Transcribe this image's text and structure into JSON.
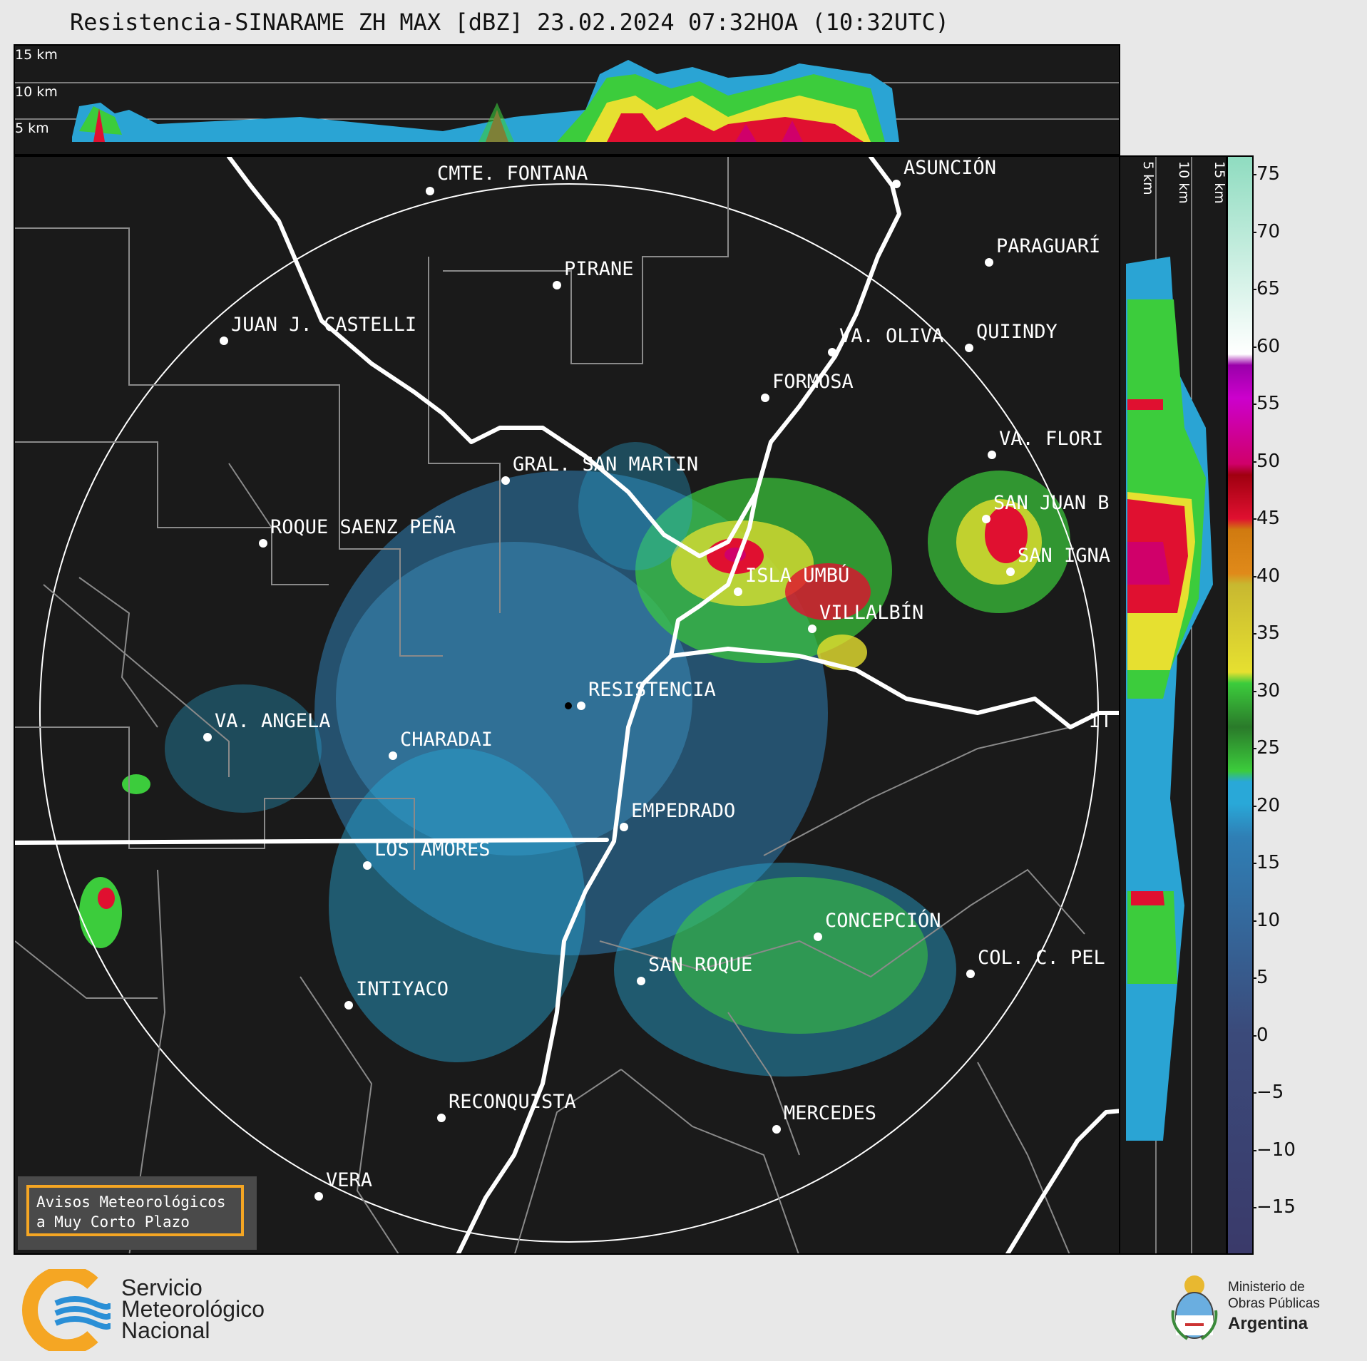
{
  "title": "Resistencia-SINARAME ZH MAX [dBZ] 23.02.2024 07:32HOA (10:32UTC)",
  "height_profile": {
    "top_labels": [
      "15 km",
      "10 km",
      "5 km"
    ],
    "side_labels": [
      "5 km",
      "10 km",
      "15 km"
    ]
  },
  "cities": [
    {
      "name": "CMTE. FONTANA"
    },
    {
      "name": "ASUNCIÓN"
    },
    {
      "name": "PARAGUARÍ"
    },
    {
      "name": "PIRANE"
    },
    {
      "name": "JUAN J. CASTELLI"
    },
    {
      "name": "VA. OLIVA"
    },
    {
      "name": "QUIINDY"
    },
    {
      "name": "FORMOSA"
    },
    {
      "name": "VA. FLORI"
    },
    {
      "name": "GRAL. SAN MARTIN"
    },
    {
      "name": "SAN JUAN B"
    },
    {
      "name": "ROQUE SAENZ PEÑA"
    },
    {
      "name": "SAN IGNA"
    },
    {
      "name": "ISLA UMBÚ"
    },
    {
      "name": "VILLALBÍN"
    },
    {
      "name": "RESISTENCIA"
    },
    {
      "name": "VA. ANGELA"
    },
    {
      "name": "CHARADAI"
    },
    {
      "name": "IT"
    },
    {
      "name": "EMPEDRADO"
    },
    {
      "name": "LOS AMORES"
    },
    {
      "name": "CONCEPCIÓN"
    },
    {
      "name": "COL. C. PEL"
    },
    {
      "name": "SAN ROQUE"
    },
    {
      "name": "INTIYACO"
    },
    {
      "name": "RECONQUISTA"
    },
    {
      "name": "MERCEDES"
    },
    {
      "name": "VERA"
    }
  ],
  "colorbar": {
    "unit": "dBZ",
    "ticks": [
      "75",
      "70",
      "65",
      "60",
      "55",
      "50",
      "45",
      "40",
      "35",
      "30",
      "25",
      "20",
      "15",
      "10",
      "5",
      "0",
      "−5",
      "−10",
      "−15"
    ],
    "colors": {
      "lt0": "#3b4a7a",
      "lt15": "#2f7fb5",
      "lt20": "#29a8d8",
      "lt30": "#3ccc3c",
      "lt40": "#e6e030",
      "lt45": "#e08a1a",
      "lt50": "#e01030",
      "lt55": "#d0006a",
      "lt60": "#cc00cc",
      "lt65": "#ffffff",
      "lt75": "#8fdcc0"
    }
  },
  "avisos": {
    "line1": "Avisos Meteorológicos",
    "line2": "a Muy Corto Plazo"
  },
  "smn": {
    "line1": "Servicio",
    "line2": "Meteorológico",
    "line3": "Nacional"
  },
  "ministerio": {
    "line1": "Ministerio de",
    "line2": "Obras Públicas",
    "line3": "Argentina"
  }
}
